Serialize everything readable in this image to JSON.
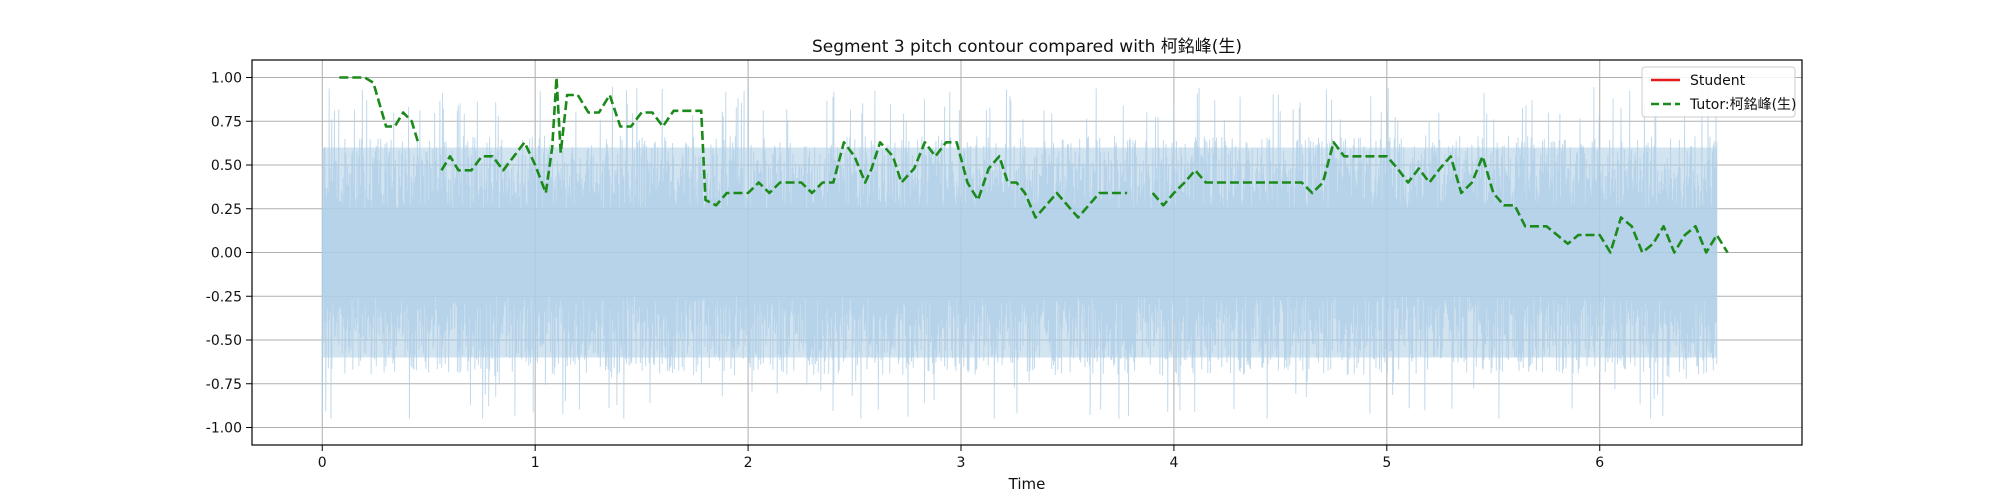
{
  "chart_data": {
    "type": "line",
    "title": "Segment 3 pitch contour compared with 柯銘峰(生)",
    "xlabel": "Time",
    "ylabel": "",
    "xlim": [
      -0.33,
      6.95
    ],
    "ylim": [
      -1.1,
      1.1
    ],
    "xticks": [
      0,
      1,
      2,
      3,
      4,
      5,
      6
    ],
    "yticks": [
      -1.0,
      -0.75,
      -0.5,
      -0.25,
      0.0,
      0.25,
      0.5,
      0.75,
      1.0
    ],
    "xtick_labels": [
      "0",
      "1",
      "2",
      "3",
      "4",
      "5",
      "6"
    ],
    "ytick_labels": [
      "-1.00",
      "-0.75",
      "-0.50",
      "-0.25",
      "0.00",
      "0.25",
      "0.50",
      "0.75",
      "1.00"
    ],
    "grid": true,
    "legend_position": "top-right",
    "waveform": {
      "name": "",
      "color": "#aecde6",
      "x_range": [
        0,
        6.55
      ],
      "amplitude": 0.95,
      "dense_band": [
        -0.6,
        0.6
      ]
    },
    "series": [
      {
        "name": "Student",
        "color": "#e41a1c",
        "style": "solid",
        "x": [],
        "y": []
      },
      {
        "name": "Tutor:柯銘峰(生)",
        "color": "#1b8a1b",
        "style": "dashed",
        "x": [
          0.08,
          0.14,
          0.2,
          0.24,
          0.3,
          0.34,
          0.38,
          0.42,
          0.45,
          null,
          0.56,
          0.6,
          0.64,
          0.7,
          0.75,
          0.8,
          0.85,
          0.9,
          0.95,
          1.0,
          1.05,
          1.08,
          1.1,
          1.12,
          1.15,
          1.2,
          1.25,
          1.3,
          1.35,
          1.4,
          1.45,
          1.5,
          1.55,
          1.6,
          1.65,
          1.7,
          1.75,
          1.78,
          1.8,
          1.85,
          1.9,
          1.95,
          2.0,
          2.05,
          2.1,
          2.15,
          2.2,
          2.25,
          2.3,
          2.35,
          2.4,
          2.45,
          2.5,
          2.55,
          2.58,
          2.62,
          2.68,
          2.72,
          2.78,
          2.83,
          2.88,
          2.93,
          2.98,
          3.03,
          3.08,
          3.13,
          3.18,
          3.22,
          3.26,
          3.3,
          3.35,
          3.4,
          3.45,
          3.5,
          3.55,
          3.6,
          3.65,
          3.7,
          3.75,
          3.78,
          null,
          3.9,
          3.95,
          4.0,
          4.05,
          4.1,
          4.15,
          4.2,
          4.3,
          4.4,
          4.5,
          4.6,
          4.65,
          4.7,
          4.75,
          4.8,
          4.9,
          5.0,
          5.05,
          5.1,
          5.15,
          5.2,
          5.25,
          5.3,
          5.35,
          5.4,
          5.45,
          5.5,
          5.55,
          5.6,
          5.65,
          5.7,
          5.75,
          5.8,
          5.85,
          5.9,
          5.95,
          6.0,
          6.05,
          6.1,
          6.15,
          6.2,
          6.25,
          6.3,
          6.35,
          6.4,
          6.45,
          6.5,
          6.55,
          6.6
        ],
        "y": [
          1.0,
          1.0,
          1.0,
          0.97,
          0.72,
          0.72,
          0.8,
          0.75,
          0.63,
          null,
          0.47,
          0.55,
          0.47,
          0.47,
          0.55,
          0.55,
          0.47,
          0.55,
          0.63,
          0.5,
          0.34,
          0.6,
          1.0,
          0.57,
          0.9,
          0.9,
          0.8,
          0.8,
          0.9,
          0.72,
          0.72,
          0.8,
          0.8,
          0.72,
          0.81,
          0.81,
          0.81,
          0.81,
          0.3,
          0.27,
          0.34,
          0.34,
          0.34,
          0.4,
          0.34,
          0.4,
          0.4,
          0.4,
          0.34,
          0.4,
          0.4,
          0.63,
          0.55,
          0.4,
          0.48,
          0.63,
          0.55,
          0.4,
          0.48,
          0.63,
          0.55,
          0.63,
          0.63,
          0.4,
          0.3,
          0.48,
          0.55,
          0.4,
          0.4,
          0.34,
          0.2,
          0.27,
          0.34,
          0.27,
          0.2,
          0.27,
          0.34,
          0.34,
          0.34,
          0.34,
          null,
          0.34,
          0.27,
          0.34,
          0.4,
          0.47,
          0.4,
          0.4,
          0.4,
          0.4,
          0.4,
          0.4,
          0.34,
          0.4,
          0.63,
          0.55,
          0.55,
          0.55,
          0.48,
          0.4,
          0.48,
          0.4,
          0.48,
          0.55,
          0.34,
          0.4,
          0.55,
          0.34,
          0.27,
          0.27,
          0.15,
          0.15,
          0.15,
          0.1,
          0.05,
          0.1,
          0.1,
          0.1,
          0.0,
          0.2,
          0.15,
          0.0,
          0.05,
          0.15,
          0.0,
          0.1,
          0.15,
          0.0,
          0.1,
          0.0
        ]
      }
    ]
  }
}
